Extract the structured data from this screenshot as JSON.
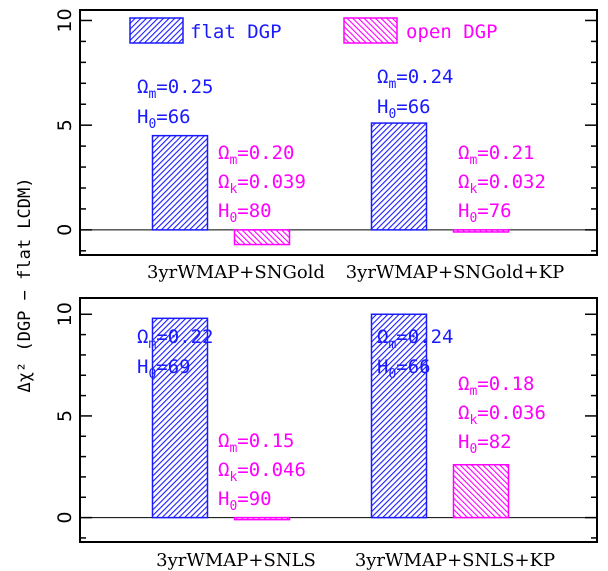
{
  "ylabel": "Δχ² (DGP − flat LCDM)",
  "colors": {
    "flat": "#1a1aff",
    "open": "#ff00ff",
    "axis": "#000000"
  },
  "legend": {
    "flat": "flat DGP",
    "open": "open DGP"
  },
  "chart_data": [
    {
      "type": "bar",
      "panel": "top",
      "ylim": [
        -1.2,
        10.5
      ],
      "yticks": [
        "0",
        "5",
        "10"
      ],
      "categories": [
        "3yrWMAP+SNGold",
        "3yrWMAP+SNGold+KP"
      ],
      "series": [
        {
          "name": "flat DGP",
          "values": [
            4.5,
            5.1
          ]
        },
        {
          "name": "open DGP",
          "values": [
            -0.7,
            -0.1
          ]
        }
      ],
      "annotations": {
        "flat": [
          {
            "om": "=0.25",
            "h0": "=66"
          },
          {
            "om": "=0.24",
            "h0": "=66"
          }
        ],
        "open": [
          {
            "om": "=0.20",
            "ok": "=0.039",
            "h0": "=80"
          },
          {
            "om": "=0.21",
            "ok": "=0.032",
            "h0": "=76"
          }
        ]
      }
    },
    {
      "type": "bar",
      "panel": "bottom",
      "ylim": [
        -1.2,
        10.8
      ],
      "yticks": [
        "0",
        "5",
        "10"
      ],
      "categories": [
        "3yrWMAP+SNLS",
        "3yrWMAP+SNLS+KP"
      ],
      "series": [
        {
          "name": "flat DGP",
          "values": [
            9.8,
            10.0
          ]
        },
        {
          "name": "open DGP",
          "values": [
            -0.1,
            2.6
          ]
        }
      ],
      "annotations": {
        "flat": [
          {
            "om": "=0.22",
            "h0": "=69"
          },
          {
            "om": "=0.24",
            "h0": "=66"
          }
        ],
        "open": [
          {
            "om": "=0.15",
            "ok": "=0.046",
            "h0": "=90"
          },
          {
            "om": "=0.18",
            "ok": "=0.036",
            "h0": "=82"
          }
        ]
      }
    }
  ]
}
